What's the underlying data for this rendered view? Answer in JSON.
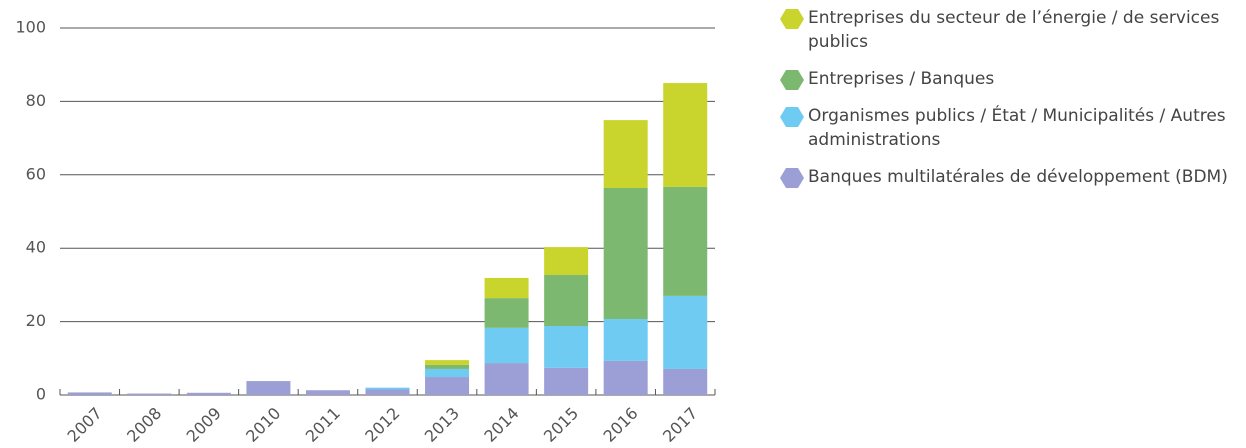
{
  "chart_data": {
    "type": "stacked_bar",
    "categories": [
      "2007",
      "2008",
      "2009",
      "2010",
      "2011",
      "2012",
      "2013",
      "2014",
      "2015",
      "2016",
      "2017"
    ],
    "series": [
      {
        "name": "Banques multilatérales de développement (BDM)",
        "color": "#9c9fd5",
        "values": [
          0.7,
          0.4,
          0.6,
          3.8,
          1.3,
          1.5,
          4.9,
          8.7,
          7.4,
          9.3,
          7.1
        ]
      },
      {
        "name": "Organismes publics / État / Municipalités / Autres administrations",
        "color": "#6fcbf1",
        "values": [
          0,
          0,
          0,
          0,
          0,
          0.5,
          2.2,
          9.6,
          11.4,
          11.4,
          19.9
        ]
      },
      {
        "name": "Entreprises / Banques",
        "color": "#7cb870",
        "values": [
          0,
          0,
          0,
          0,
          0,
          0,
          1.1,
          8.1,
          13.9,
          35.7,
          29.7
        ]
      },
      {
        "name": "Entreprises du secteur de l’énergie / de services publics",
        "color": "#c9d42c",
        "values": [
          0,
          0,
          0,
          0,
          0,
          0,
          1.3,
          5.5,
          7.6,
          18.5,
          28.3
        ]
      }
    ],
    "ylim": [
      0,
      100
    ],
    "yticks": [
      0,
      20,
      40,
      60,
      80,
      100
    ],
    "grid": true
  }
}
